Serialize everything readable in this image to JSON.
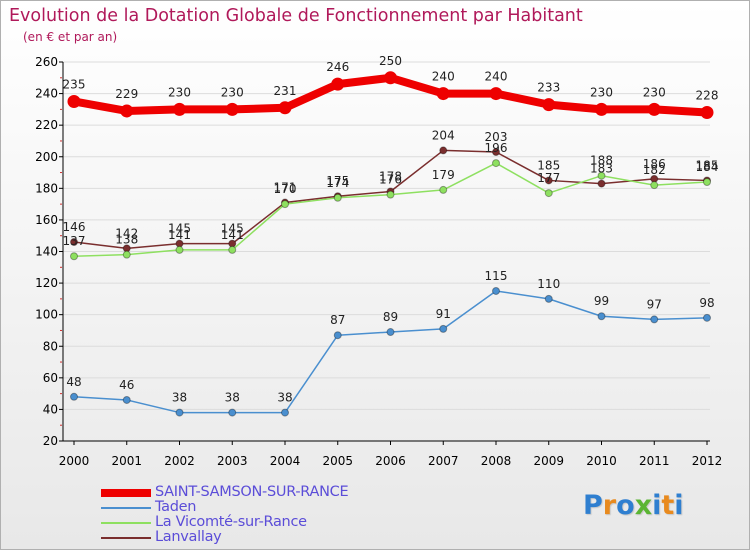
{
  "header": {
    "title": "Evolution de la Dotation Globale de Fonctionnement par Habitant",
    "subtitle": "(en € et par an)"
  },
  "logo": {
    "text": "Proxiti",
    "colors": [
      "#2f7fd0",
      "#e88a1e",
      "#2f7fd0",
      "#5bb533",
      "#2f7fd0",
      "#e88a1e",
      "#2f7fd0"
    ]
  },
  "colors": {
    "title": "#b0195a",
    "axis": "#000000",
    "grid": "#dcdcdc",
    "legend_text": "#5b4dd8"
  },
  "chart_data": {
    "type": "line",
    "title": "Evolution de la Dotation Globale de Fonctionnement par Habitant",
    "subtitle": "(en € et par an)",
    "xlabel": "",
    "ylabel": "",
    "ylim": [
      20,
      260
    ],
    "yticks": [
      20,
      40,
      60,
      80,
      100,
      120,
      140,
      160,
      180,
      200,
      220,
      240,
      260
    ],
    "x": [
      "2000",
      "2001",
      "2002",
      "2003",
      "2004",
      "2005",
      "2006",
      "2007",
      "2008",
      "2009",
      "2010",
      "2011",
      "2012"
    ],
    "legend_position": "bottom-left",
    "series": [
      {
        "name": "SAINT-SAMSON-SUR-RANCE",
        "color": "#ee0000",
        "values": [
          235,
          229,
          230,
          230,
          231,
          246,
          250,
          240,
          240,
          233,
          230,
          230,
          228
        ]
      },
      {
        "name": "Taden",
        "color": "#4a8fcf",
        "values": [
          48,
          46,
          38,
          38,
          38,
          87,
          89,
          91,
          115,
          110,
          99,
          97,
          98
        ]
      },
      {
        "name": "La Vicomté-sur-Rance",
        "color": "#8ee060",
        "values": [
          137,
          138,
          141,
          141,
          170,
          174,
          176,
          179,
          196,
          177,
          188,
          182,
          184
        ]
      },
      {
        "name": "Lanvallay",
        "color": "#7a2e2e",
        "values": [
          146,
          142,
          145,
          145,
          171,
          175,
          178,
          204,
          203,
          185,
          183,
          186,
          185
        ]
      }
    ]
  }
}
